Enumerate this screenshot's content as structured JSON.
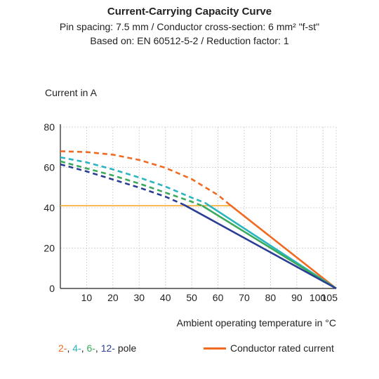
{
  "chart_data": {
    "type": "line",
    "title": "Current-Carrying Capacity Curve",
    "subtitle_lines": [
      "Pin spacing: 7.5 mm / Conductor cross-section: 6 mm² \"f-st\"",
      "Based on: EN 60512-5-2 / Reduction factor: 1"
    ],
    "ylabel": "Current in A",
    "xlabel": "Ambient operating temperature in °C",
    "xlim": [
      0,
      105
    ],
    "ylim": [
      0,
      80
    ],
    "x_ticks": [
      10,
      20,
      30,
      40,
      50,
      60,
      70,
      80,
      90,
      100,
      105
    ],
    "x_tick_labels": [
      "10",
      "20",
      "30",
      "40",
      "50",
      "60",
      "70",
      "80",
      "90",
      "100",
      "105"
    ],
    "y_ticks": [
      0,
      20,
      40,
      60,
      80
    ],
    "y_tick_labels": [
      "0",
      "20",
      "40",
      "60",
      "80"
    ],
    "grid": true,
    "rated_current": {
      "name": "Conductor rated current",
      "value": 41,
      "color": "#f5b041"
    },
    "series": [
      {
        "name": "2-",
        "color": "#f06a21",
        "dashed": {
          "x": [
            0,
            10,
            20,
            30,
            40,
            50,
            60,
            64
          ],
          "y": [
            68,
            67.6,
            66.3,
            63.7,
            59.8,
            54.2,
            46.3,
            42
          ]
        },
        "solid": {
          "x": [
            64,
            105
          ],
          "y": [
            42,
            0
          ]
        }
      },
      {
        "name": "4-",
        "color": "#2ab5c1",
        "dashed": {
          "x": [
            0,
            10,
            20,
            30,
            40,
            50,
            55
          ],
          "y": [
            65,
            62.5,
            59,
            55,
            50.5,
            45,
            42.5
          ]
        },
        "solid": {
          "x": [
            55,
            105
          ],
          "y": [
            42.5,
            0
          ]
        }
      },
      {
        "name": "6-",
        "color": "#3aaa5c",
        "dashed": {
          "x": [
            0,
            10,
            20,
            30,
            40,
            50,
            54
          ],
          "y": [
            63,
            59.5,
            56,
            52,
            47.5,
            43,
            41
          ]
        },
        "solid": {
          "x": [
            54,
            105
          ],
          "y": [
            41,
            0
          ]
        }
      },
      {
        "name": "12-",
        "color": "#2a3f94",
        "dashed": {
          "x": [
            0,
            10,
            20,
            30,
            40,
            47
          ],
          "y": [
            61.5,
            58,
            54,
            50,
            45.5,
            41.5
          ]
        },
        "solid": {
          "x": [
            47,
            105
          ],
          "y": [
            41.5,
            0
          ]
        }
      }
    ],
    "legend": {
      "pole_items": [
        {
          "label": "2-",
          "color": "#f06a21"
        },
        {
          "label": "4-",
          "color": "#2ab5c1"
        },
        {
          "label": "6-",
          "color": "#3aaa5c"
        },
        {
          "label": "12-",
          "color": "#2a3f94"
        }
      ],
      "pole_suffix": "pole",
      "separator": ", ",
      "rated_label": "Conductor rated current",
      "rated_color": "#f06a21",
      "placement": "bottom"
    }
  }
}
